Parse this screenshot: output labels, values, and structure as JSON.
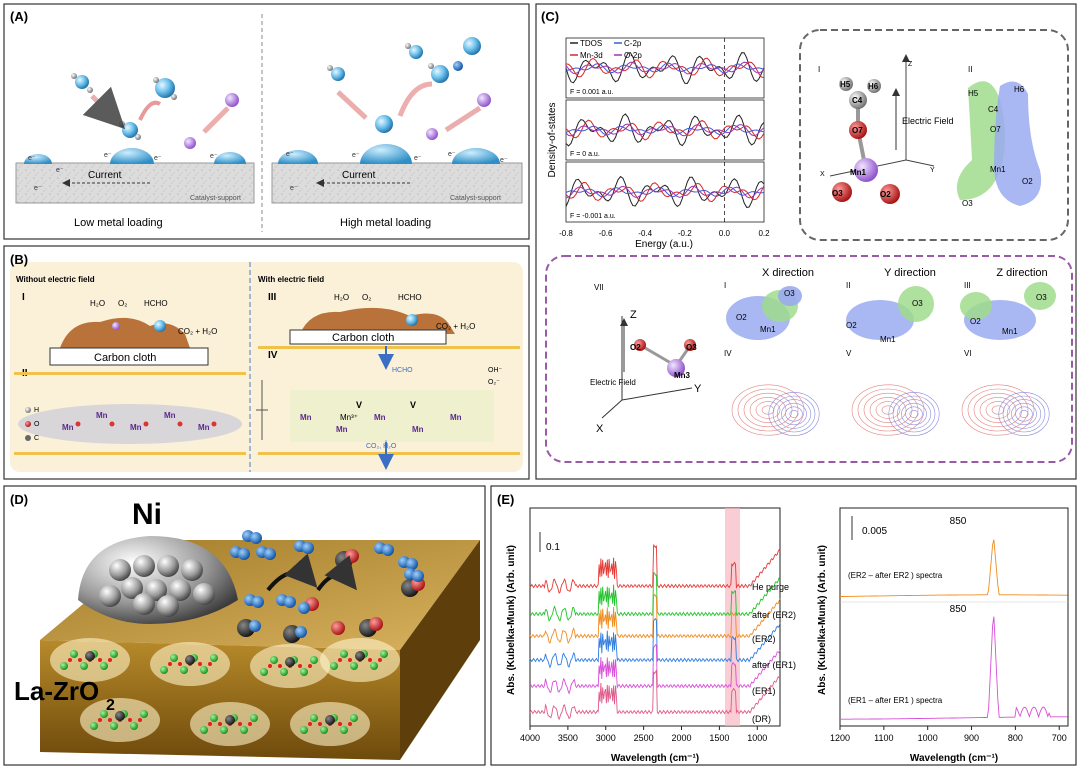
{
  "panelA": {
    "tag": "(A)",
    "left_caption": "Low metal loading",
    "right_caption": "High metal loading",
    "current": "Current",
    "support": "Catalyst-support",
    "e": "e⁻"
  },
  "panelB": {
    "tag": "(B)",
    "left_title": "Without electric field",
    "right_title": "With electric field",
    "roman_I": "I",
    "roman_II": "II",
    "roman_III": "III",
    "roman_IV": "IV",
    "h2o": "H₂O",
    "o2": "O₂",
    "hcho": "HCHO",
    "products": "CO₂ + H₂O",
    "carbon_cloth": "Carbon cloth",
    "mn_label": "Mn",
    "mn3": "Mn³⁺",
    "vo": "V",
    "vo_sub": "O",
    "co2h2o": "CO₂, H₂O",
    "oh_minus": "OH⁻",
    "o2_minus": "O₂⁻",
    "legend_h": "H",
    "legend_o": "O",
    "legend_c": "C",
    "mn_chain": [
      "Mn",
      "Mn",
      "Mn",
      "Mn",
      "Mn",
      "Mn",
      "Mn",
      "Mn"
    ]
  },
  "panelC": {
    "tag": "(C)",
    "ylabel": "Density-of-states",
    "xlabel": "Energy (a.u.)",
    "legend": [
      "TDOS",
      "C-2p",
      "Mn-3d",
      "O-2p"
    ],
    "legend_colors": [
      "#222222",
      "#3b5bdb",
      "#d62828",
      "#9c36b5"
    ],
    "field_labels": [
      "F = 0.001 a.u.",
      "F = 0 a.u.",
      "F = -0.001 a.u."
    ],
    "xticks": [
      "-0.8",
      "-0.6",
      "-0.4",
      "-0.2",
      "0.0",
      "0.2"
    ],
    "top_I": "I",
    "top_II": "II",
    "electric_field": "Electric Field",
    "axis_z": "Z",
    "axis_x": "X",
    "axis_y": "Y",
    "atoms_I": [
      "H5",
      "H6",
      "C4",
      "O7",
      "Mn1",
      "O3",
      "O2"
    ],
    "atoms_II": [
      "H5",
      "H6",
      "C4",
      "O7",
      "Mn1",
      "O2",
      "O3"
    ],
    "directions": [
      "X direction",
      "Y direction",
      "Z direction"
    ],
    "romans_bottom": [
      "VII",
      "I",
      "II",
      "III",
      "IV",
      "V",
      "VI"
    ],
    "mol_labels": [
      "O2",
      "Mn3",
      "O3"
    ],
    "iso_labels": [
      "O2",
      "Mn1",
      "O3"
    ]
  },
  "panelD": {
    "tag": "(D)",
    "ni": "Ni",
    "support_main": "La-ZrO",
    "support_sub": "2"
  },
  "panelE": {
    "tag": "(E)",
    "ylabel_left": "Abs. (Kubelka-Munk) (Arb. unit)",
    "ylabel_right": "Abs. (Kubelka-Munk) (Arb. unit)",
    "xlabel": "Wavelength (cm⁻¹)",
    "scale_left": "0.1",
    "scale_right": "0.005",
    "peak_top": "850",
    "peak_bottom": "850",
    "top_spectrum": "(ER2 – after ER2 ) spectra",
    "bottom_spectrum": "(ER1 – after ER1 ) spectra",
    "traces": [
      "He purge",
      "after (ER2)",
      "(ER2)",
      "after (ER1)",
      "(ER1)",
      "(DR)"
    ],
    "trace_colors": [
      "#e53935",
      "#22c32a",
      "#f08c1e",
      "#2f7de1",
      "#d84fd8",
      "#e05a8a"
    ],
    "xticks_left": [
      "4000",
      "3500",
      "3000",
      "2500",
      "2000",
      "1500",
      "1000"
    ],
    "xticks_right": [
      "1200",
      "1100",
      "1000",
      "900",
      "800",
      "700"
    ]
  }
}
